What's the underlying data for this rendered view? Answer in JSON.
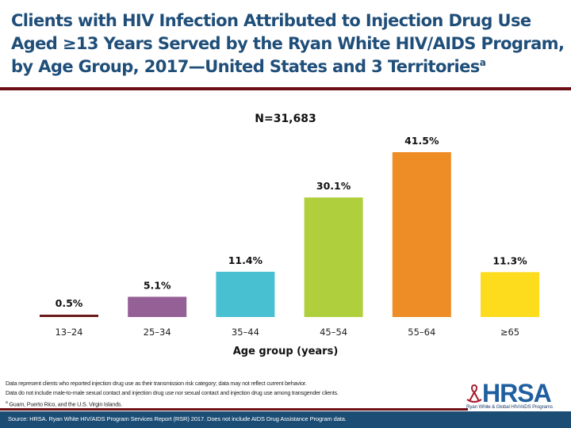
{
  "slide": {
    "title": "Clients with HIV Infection Attributed to Injection Drug Use Aged ≥13 Years Served by the Ryan White HIV/AIDS Program, by Age Group, 2017—United States and 3 Territories",
    "title_superscript": "a",
    "notes": [
      "Data represent clients who reported injection drug use as their transmission risk category; data may not reflect current behavior.",
      "Data do not include male-to-male sexual contact and injection drug use nor sexual contact and injection drug use among transgender clients.",
      "Guam, Puerto Rico, and the U.S. Virgin Islands."
    ],
    "notes_footnote_marker": "a",
    "source": "Source: HRSA. Ryan White HIV/AIDS Program Services Report (RSR) 2017. Does not include AIDS Drug Assistance Program data.",
    "logo": {
      "name": "HRSA",
      "tagline": "Ryan White & Global HIV/AIDS Programs"
    },
    "colors": {
      "title": "#1f4e79",
      "accent_rule": "#6b0f14",
      "footer_band": "#1b4d75"
    }
  },
  "chart_data": {
    "type": "bar",
    "title": "N=31,683",
    "xlabel": "Age group (years)",
    "ylabel": "",
    "categories": [
      "13–24",
      "25–34",
      "35–44",
      "45–54",
      "55–64",
      "≥65"
    ],
    "values": [
      0.5,
      5.1,
      11.4,
      30.1,
      41.5,
      11.3
    ],
    "data_labels": [
      "0.5%",
      "5.1%",
      "11.4%",
      "30.1%",
      "41.5%",
      "11.3%"
    ],
    "units": "percent",
    "colors": [
      "#6b1a1a",
      "#946096",
      "#48c0d2",
      "#b0cf3c",
      "#ee8c26",
      "#fddc1e"
    ],
    "ylim": [
      0,
      41.5
    ],
    "grid": false,
    "legend": "none"
  }
}
